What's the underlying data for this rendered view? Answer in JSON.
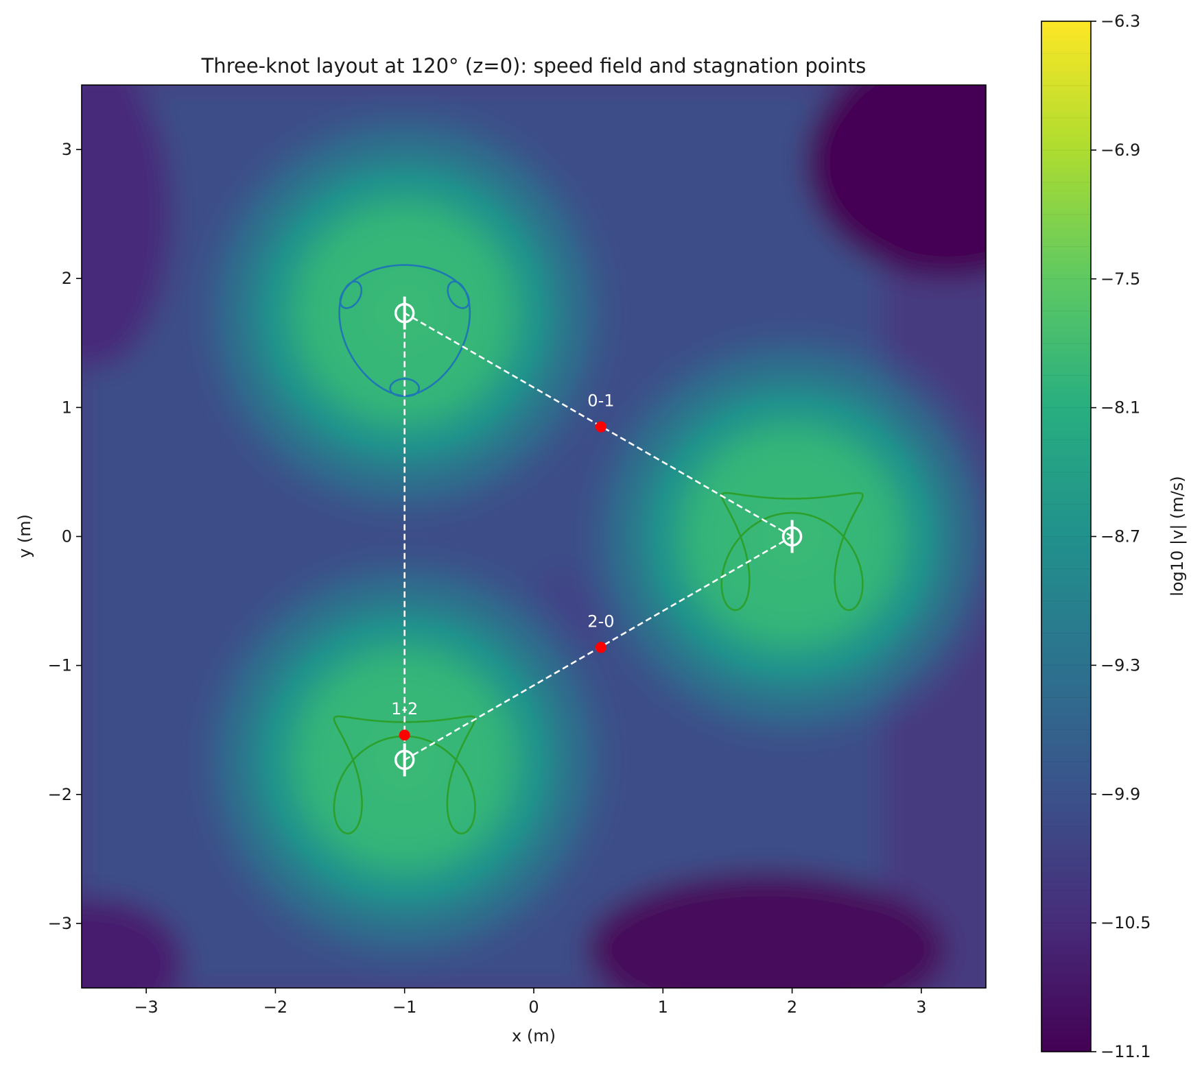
{
  "chart_data": {
    "type": "heatmap",
    "title": "Three-knot layout at 120° (z=0): speed field and stagnation points",
    "xlabel": "x (m)",
    "ylabel": "y (m)",
    "xlim": [
      -3.5,
      3.5
    ],
    "ylim": [
      -3.5,
      3.5
    ],
    "xticks": [
      -3,
      -2,
      -1,
      0,
      1,
      2,
      3
    ],
    "yticks": [
      -3,
      -2,
      -1,
      0,
      1,
      2,
      3
    ],
    "x_tick_labels": [
      "−3",
      "−2",
      "−1",
      "0",
      "1",
      "2",
      "3"
    ],
    "y_tick_labels": [
      "−3",
      "−2",
      "−1",
      "0",
      "1",
      "2",
      "3"
    ],
    "grid": false,
    "colormap": "viridis",
    "colorbar": {
      "label": "log10 |v| (m/s)",
      "range": [
        -11.1,
        -6.3
      ],
      "ticks": [
        -11.1,
        -10.5,
        -9.9,
        -9.3,
        -8.7,
        -8.1,
        -7.5,
        -6.9,
        -6.3
      ],
      "tick_labels": [
        "−11.1",
        "−10.5",
        "−9.9",
        "−9.3",
        "−8.7",
        "−8.1",
        "−7.5",
        "−6.9",
        "−6.3"
      ],
      "levels": 32
    },
    "knots": [
      {
        "id": 0,
        "center": [
          2.0,
          0.0
        ],
        "color": "#2ca02c",
        "shape": "four-lobed"
      },
      {
        "id": 1,
        "center": [
          -1.0,
          1.732
        ],
        "color": "#1f77b4",
        "shape": "three-lobed"
      },
      {
        "id": 2,
        "center": [
          -1.0,
          -1.732
        ],
        "color": "#2ca02c",
        "shape": "four-lobed"
      }
    ],
    "stagnation_points": [
      {
        "label": "0-1",
        "x": 0.52,
        "y": 0.85
      },
      {
        "label": "2-0",
        "x": 0.52,
        "y": -0.86
      },
      {
        "label": "1-2",
        "x": -1.0,
        "y": -1.54
      }
    ],
    "connections": [
      [
        0,
        1
      ],
      [
        1,
        2
      ],
      [
        2,
        0
      ]
    ],
    "field_features": {
      "low_speed_minimum": [
        0.3,
        -0.55
      ],
      "low_speed_regions": [
        [
          3.0,
          2.8
        ],
        [
          1.5,
          -3.1
        ]
      ]
    }
  }
}
